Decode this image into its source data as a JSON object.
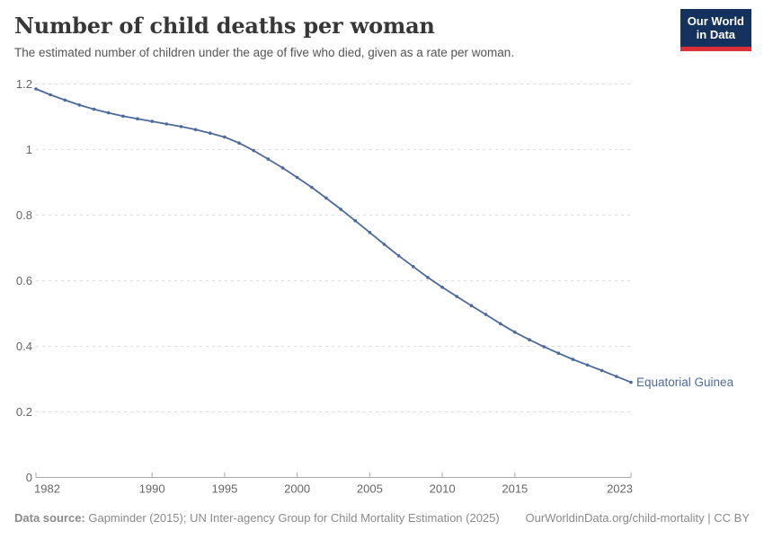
{
  "header": {
    "title": "Number of child deaths per woman",
    "subtitle": "The estimated number of children under the age of five who died, given as a rate per woman.",
    "logo": {
      "line1": "Our World",
      "line2": "in Data",
      "bg_color": "#15315d",
      "bar_color": "#dc2f37"
    }
  },
  "chart_data": {
    "type": "line",
    "title": "Number of child deaths per woman",
    "entity_label": "Equatorial Guinea",
    "x": [
      1982,
      1983,
      1984,
      1985,
      1986,
      1987,
      1988,
      1989,
      1990,
      1991,
      1992,
      1993,
      1994,
      1995,
      1996,
      1997,
      1998,
      1999,
      2000,
      2001,
      2002,
      2003,
      2004,
      2005,
      2006,
      2007,
      2008,
      2009,
      2010,
      2011,
      2012,
      2013,
      2014,
      2015,
      2016,
      2017,
      2018,
      2019,
      2020,
      2021,
      2022,
      2023
    ],
    "series": [
      {
        "name": "Equatorial Guinea",
        "values": [
          1.185,
          1.167,
          1.151,
          1.136,
          1.123,
          1.112,
          1.102,
          1.094,
          1.086,
          1.078,
          1.07,
          1.061,
          1.05,
          1.038,
          1.02,
          0.997,
          0.971,
          0.944,
          0.915,
          0.885,
          0.852,
          0.818,
          0.783,
          0.747,
          0.711,
          0.676,
          0.643,
          0.61,
          0.58,
          0.552,
          0.524,
          0.497,
          0.469,
          0.443,
          0.42,
          0.399,
          0.379,
          0.36,
          0.343,
          0.326,
          0.308,
          0.29
        ]
      }
    ],
    "xlabel": "",
    "ylabel": "",
    "xlim": [
      1982,
      2023
    ],
    "ylim": [
      0,
      1.2
    ],
    "xticks": [
      1982,
      1990,
      1995,
      2000,
      2005,
      2010,
      2015,
      2023
    ],
    "yticks": [
      0,
      0.2,
      0.4,
      0.6,
      0.8,
      1,
      1.2
    ],
    "ytick_labels": [
      "0",
      "0.2",
      "0.4",
      "0.6",
      "0.8",
      "1",
      "1.2"
    ],
    "grid": "horizontal-dashed",
    "legend_position": "end-of-line-label",
    "line_color": "#4c6a9c",
    "grid_color": "#dcdcdc",
    "axis_color": "#a8a8a8",
    "tick_text_color": "#666666"
  },
  "footer": {
    "source_label": "Data source:",
    "source_text": " Gapminder (2015); UN Inter-agency Group for Child Mortality Estimation (2025)",
    "link_text": "OurWorldinData.org/child-mortality | CC BY"
  }
}
